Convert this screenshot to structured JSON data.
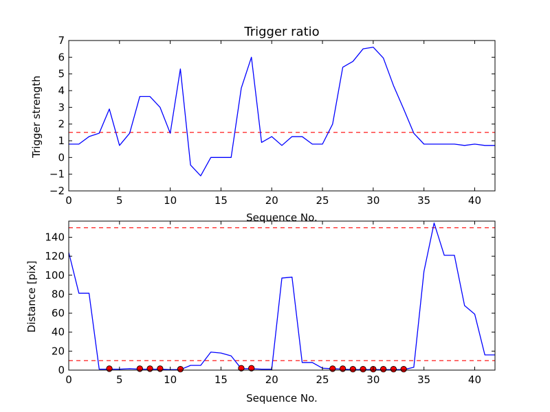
{
  "chart_data": [
    {
      "type": "line",
      "title": "Trigger ratio",
      "xlabel": "Sequence No.",
      "ylabel": "Trigger strength",
      "xlim": [
        0,
        42
      ],
      "ylim": [
        -2,
        7
      ],
      "xticks": [
        0,
        5,
        10,
        15,
        20,
        25,
        30,
        35,
        40
      ],
      "yticks": [
        -2,
        -1,
        0,
        1,
        2,
        3,
        4,
        5,
        6,
        7
      ],
      "ytick_labels": [
        "−2",
        "−1",
        "0",
        "1",
        "2",
        "3",
        "4",
        "5",
        "6",
        "7"
      ],
      "line_color": "#0000ff",
      "threshold_color": "#ff0000",
      "grid": false,
      "thresholds": [
        1.5
      ],
      "series": [
        {
          "x": [
            0,
            1,
            2,
            3,
            4,
            5,
            6,
            7,
            8,
            9,
            10,
            11,
            12,
            13,
            14,
            15,
            16,
            17,
            18,
            19,
            20,
            21,
            22,
            23,
            24,
            25,
            26,
            27,
            28,
            29,
            30,
            31,
            32,
            33,
            34,
            35,
            36,
            37,
            38,
            39,
            40,
            41,
            42
          ],
          "values": [
            0.8,
            0.8,
            1.25,
            1.45,
            2.9,
            0.72,
            1.45,
            3.65,
            3.65,
            3.0,
            1.45,
            5.3,
            -0.45,
            -1.1,
            0.0,
            0.0,
            0.0,
            4.15,
            6.0,
            0.9,
            1.25,
            0.72,
            1.25,
            1.25,
            0.8,
            0.8,
            2.0,
            5.4,
            5.75,
            6.5,
            6.6,
            5.95,
            4.3,
            2.9,
            1.45,
            0.8,
            0.8,
            0.8,
            0.8,
            0.72,
            0.8,
            0.72,
            0.72
          ]
        }
      ]
    },
    {
      "type": "line",
      "title": "",
      "xlabel": "Sequence No.",
      "ylabel": "Distance [pix]",
      "xlim": [
        0,
        42
      ],
      "ylim": [
        0,
        157
      ],
      "xticks": [
        0,
        5,
        10,
        15,
        20,
        25,
        30,
        35,
        40
      ],
      "yticks": [
        0,
        20,
        40,
        60,
        80,
        100,
        120,
        140
      ],
      "line_color": "#0000ff",
      "threshold_color": "#ff0000",
      "marker_color": "#ff0000",
      "grid": false,
      "thresholds": [
        150,
        10
      ],
      "series": [
        {
          "x": [
            0,
            1,
            2,
            3,
            4,
            5,
            6,
            7,
            8,
            9,
            10,
            11,
            12,
            13,
            14,
            15,
            16,
            17,
            18,
            19,
            20,
            21,
            22,
            23,
            24,
            25,
            26,
            27,
            28,
            29,
            30,
            31,
            32,
            33,
            34,
            35,
            36,
            37,
            38,
            39,
            40,
            41,
            42
          ],
          "values": [
            124,
            81,
            81,
            1,
            1,
            1,
            1.5,
            1,
            1,
            1,
            0.5,
            0.5,
            5,
            5,
            19,
            18,
            15,
            1.5,
            1.5,
            1,
            1,
            97,
            98,
            8,
            8,
            2,
            1.5,
            1,
            0.5,
            0.5,
            0.5,
            0.5,
            0.5,
            0.5,
            3,
            104,
            155,
            121,
            121,
            68,
            59,
            16,
            16
          ]
        }
      ],
      "markers": {
        "x": [
          4,
          7,
          8,
          9,
          11,
          17,
          18,
          26,
          27,
          28,
          29,
          30,
          31,
          32,
          33
        ],
        "values": [
          1.5,
          1.5,
          1.5,
          1.5,
          1,
          2,
          2,
          1.5,
          1.5,
          1,
          1,
          1,
          1,
          1,
          1
        ]
      }
    }
  ]
}
